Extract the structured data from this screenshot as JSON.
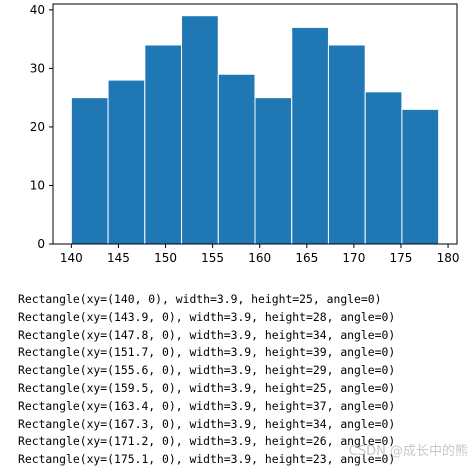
{
  "chart_data": {
    "type": "bar",
    "title": "",
    "xlabel": "",
    "ylabel": "",
    "bins": [
      {
        "x": 140.0,
        "width": 3.9,
        "height": 25
      },
      {
        "x": 143.9,
        "width": 3.9,
        "height": 28
      },
      {
        "x": 147.8,
        "width": 3.9,
        "height": 34
      },
      {
        "x": 151.7,
        "width": 3.9,
        "height": 39
      },
      {
        "x": 155.6,
        "width": 3.9,
        "height": 29
      },
      {
        "x": 159.5,
        "width": 3.9,
        "height": 25
      },
      {
        "x": 163.4,
        "width": 3.9,
        "height": 37
      },
      {
        "x": 167.3,
        "width": 3.9,
        "height": 34
      },
      {
        "x": 171.2,
        "width": 3.9,
        "height": 26
      },
      {
        "x": 175.1,
        "width": 3.9,
        "height": 23
      }
    ],
    "xlim": [
      138.05,
      180.95
    ],
    "ylim": [
      0,
      41
    ],
    "xticks": [
      140,
      145,
      150,
      155,
      160,
      165,
      170,
      175,
      180
    ],
    "yticks": [
      0,
      10,
      20,
      30,
      40
    ],
    "bar_color": "#1f77b4",
    "edge_color": "#ffffff",
    "grid": false
  },
  "console": {
    "lines": [
      "Rectangle(xy=(140, 0), width=3.9, height=25, angle=0)",
      "Rectangle(xy=(143.9, 0), width=3.9, height=28, angle=0)",
      "Rectangle(xy=(147.8, 0), width=3.9, height=34, angle=0)",
      "Rectangle(xy=(151.7, 0), width=3.9, height=39, angle=0)",
      "Rectangle(xy=(155.6, 0), width=3.9, height=29, angle=0)",
      "Rectangle(xy=(159.5, 0), width=3.9, height=25, angle=0)",
      "Rectangle(xy=(163.4, 0), width=3.9, height=37, angle=0)",
      "Rectangle(xy=(167.3, 0), width=3.9, height=34, angle=0)",
      "Rectangle(xy=(171.2, 0), width=3.9, height=26, angle=0)",
      "Rectangle(xy=(175.1, 0), width=3.9, height=23, angle=0)"
    ]
  },
  "watermark": "CSDN @成长中的熊"
}
